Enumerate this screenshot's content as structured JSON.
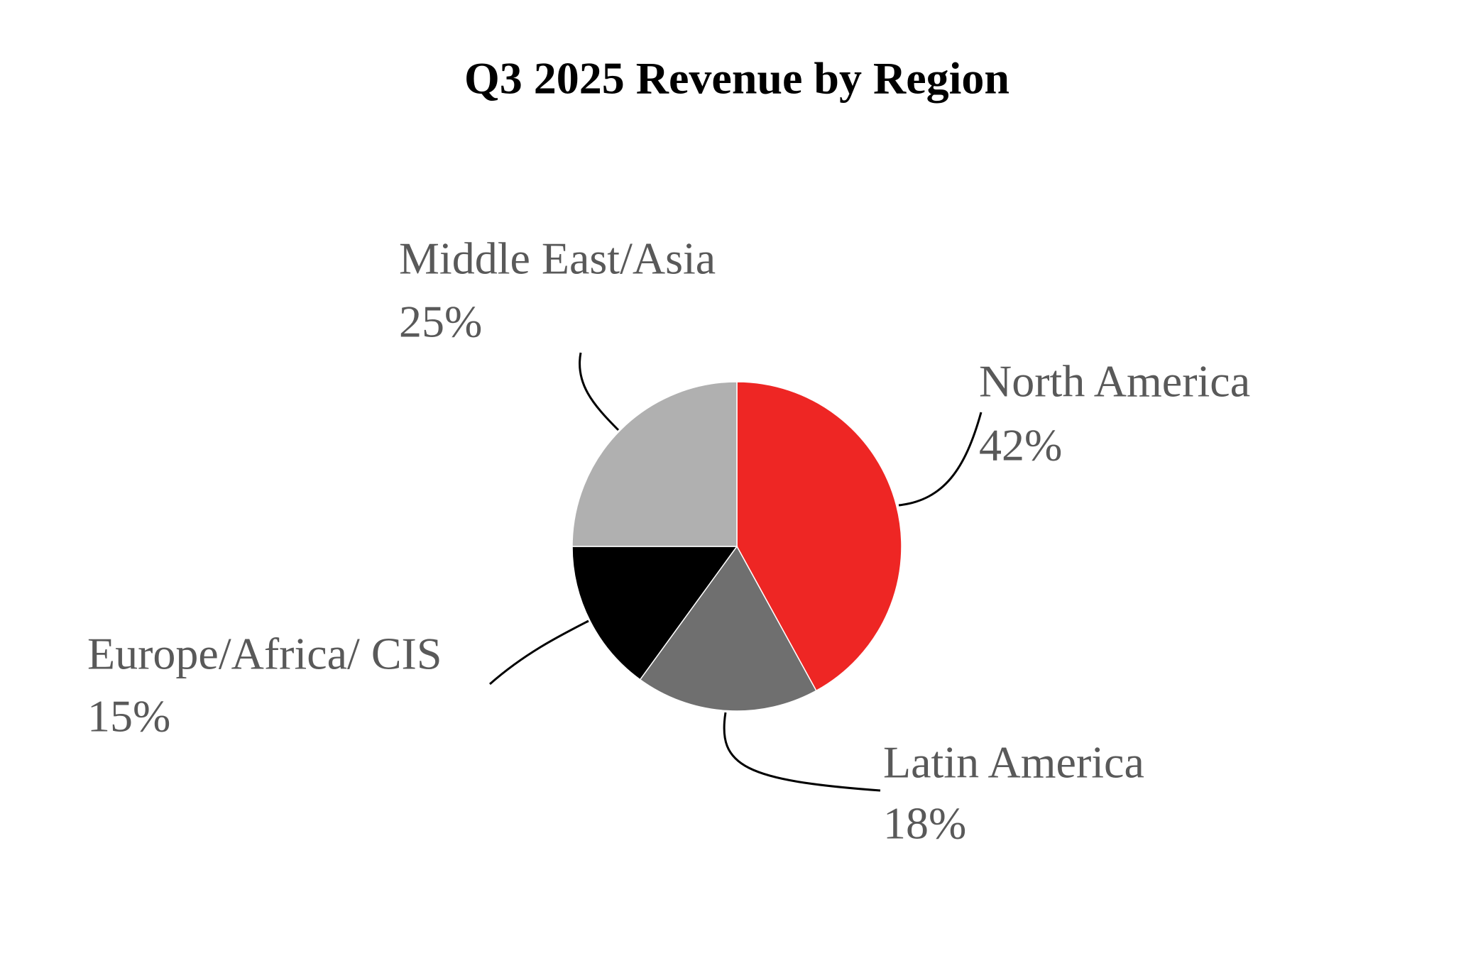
{
  "chart_data": {
    "type": "pie",
    "title": "Q3 2025 Revenue by Region",
    "categories": [
      "North America",
      "Latin America",
      "Europe/Africa/ CIS",
      "Middle East/Asia"
    ],
    "values": [
      42,
      18,
      15,
      25
    ],
    "value_labels": [
      "42%",
      "18%",
      "15%",
      "25%"
    ],
    "colors": [
      "#ee2624",
      "#6f6f6f",
      "#000000",
      "#b0b0b0"
    ]
  }
}
